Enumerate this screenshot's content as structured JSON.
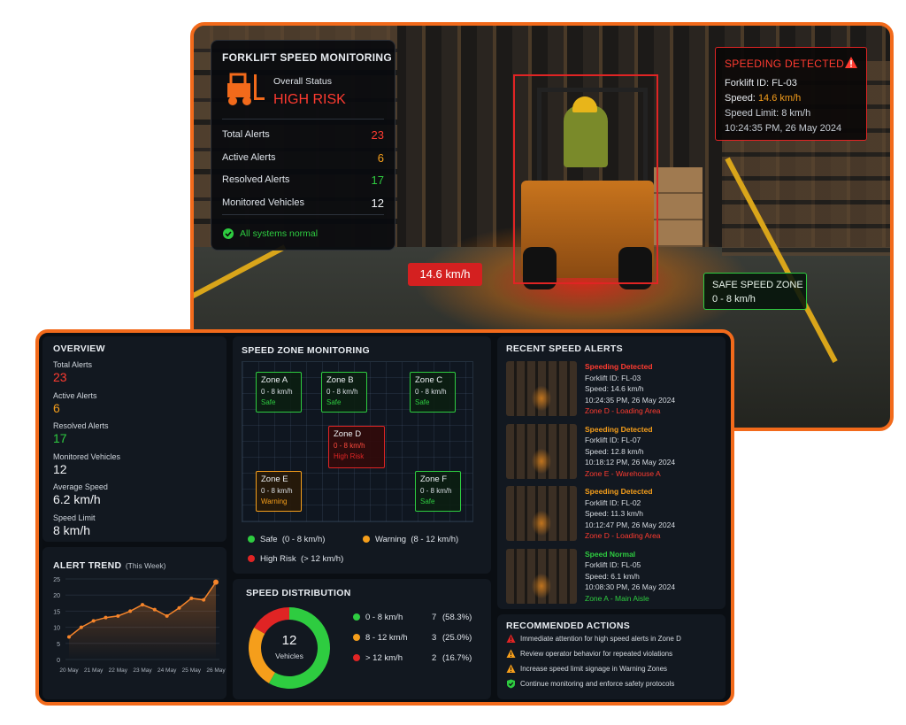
{
  "camera": {
    "status_card": {
      "title": "FORKLIFT SPEED MONITORING",
      "status_label": "Overall Status",
      "status": "HIGH RISK",
      "stats": [
        {
          "label": "Total Alerts",
          "value": 23
        },
        {
          "label": "Active Alerts",
          "value": 6
        },
        {
          "label": "Resolved Alerts",
          "value": 17
        },
        {
          "label": "Monitored Vehicles",
          "value": 12
        }
      ],
      "system": "All systems normal"
    },
    "alert": {
      "title": "SPEEDING DETECTED",
      "forklift": "Forklift ID: FL-03",
      "speed_label": "Speed:",
      "speed": "14.6 km/h",
      "limit": "Speed Limit: 8 km/h",
      "time": "10:24:35 PM, 26 May 2024"
    },
    "speed_tag": "14.6 km/h",
    "zone_tag": {
      "title": "SAFE SPEED ZONE",
      "range": "0 - 8 km/h"
    }
  },
  "overview": {
    "title": "OVERVIEW",
    "items": [
      {
        "label": "Total Alerts",
        "value": 23
      },
      {
        "label": "Active Alerts",
        "value": 6
      },
      {
        "label": "Resolved Alerts",
        "value": 17
      },
      {
        "label": "Monitored Vehicles",
        "value": 12
      },
      {
        "label": "Average Speed",
        "value": "6.2 km/h"
      },
      {
        "label": "Speed Limit",
        "value": "8 km/h"
      }
    ]
  },
  "alert_trend": {
    "type": "line",
    "title": "ALERT TREND",
    "subtitle": "(This Week)",
    "categories": [
      "20 May",
      null,
      "21 May",
      null,
      "22 May",
      null,
      "23 May",
      null,
      "24 May",
      null,
      "25 May",
      null,
      "26 May"
    ],
    "values": [
      7,
      10,
      12,
      13,
      13.5,
      15,
      17,
      15.5,
      13.5,
      16,
      19,
      18.5,
      24
    ],
    "ylim": [
      0,
      25
    ],
    "yticks": [
      0,
      5,
      10,
      15,
      20,
      25
    ],
    "color": "#f5842a"
  },
  "zone_monitoring": {
    "title": "SPEED ZONE MONITORING",
    "zones": [
      {
        "name": "Zone A",
        "range": "0 - 8 km/h",
        "status": "Safe"
      },
      {
        "name": "Zone B",
        "range": "0 - 8 km/h",
        "status": "Safe"
      },
      {
        "name": "Zone C",
        "range": "0 - 8 km/h",
        "status": "Safe"
      },
      {
        "name": "Zone D",
        "range": "0 - 8 km/h",
        "status": "High Risk"
      },
      {
        "name": "Zone E",
        "range": "0 - 8 km/h",
        "status": "Warning"
      },
      {
        "name": "Zone F",
        "range": "0 - 8 km/h",
        "status": "Safe"
      }
    ],
    "legend": [
      {
        "name": "Safe",
        "range": "(0 - 8 km/h)"
      },
      {
        "name": "Warning",
        "range": "(8 - 12 km/h)"
      },
      {
        "name": "High Risk",
        "range": "(> 12 km/h)"
      }
    ]
  },
  "speed_distribution": {
    "title": "SPEED DISTRIBUTION",
    "total": 12,
    "total_label": "Vehicles",
    "items": [
      {
        "range": "0 - 8 km/h",
        "count": 7,
        "share": "(58.3%)",
        "color": "#2ecc40"
      },
      {
        "range": "8 - 12 km/h",
        "count": 3,
        "share": "(25.0%)",
        "color": "#f59e1b"
      },
      {
        "range": "> 12 km/h",
        "count": 2,
        "share": "(16.7%)",
        "color": "#e02424"
      }
    ]
  },
  "recent_alerts": {
    "title": "RECENT SPEED ALERTS",
    "items": [
      {
        "status": "Speeding Detected",
        "forklift": "Forklift ID: FL-03",
        "speed": "Speed: 14.6 km/h",
        "time": "10:24:35 PM, 26 May 2024",
        "zone": "Zone D - Loading Area"
      },
      {
        "status": "Speeding Detected",
        "forklift": "Forklift ID: FL-07",
        "speed": "Speed: 12.8 km/h",
        "time": "10:18:12 PM, 26 May 2024",
        "zone": "Zone E - Warehouse A"
      },
      {
        "status": "Speeding Detected",
        "forklift": "Forklift ID: FL-02",
        "speed": "Speed: 11.3 km/h",
        "time": "10:12:47 PM, 26 May 2024",
        "zone": "Zone D - Loading Area"
      },
      {
        "status": "Speed Normal",
        "forklift": "Forklift ID: FL-05",
        "speed": "Speed: 6.1 km/h",
        "time": "10:08:30 PM, 26 May 2024",
        "zone": "Zone A - Main Aisle"
      }
    ]
  },
  "actions": {
    "title": "RECOMMENDED ACTIONS",
    "items": [
      "Immediate attention for high speed alerts in Zone D",
      "Review operator behavior for repeated violations",
      "Increase speed limit signage in Warning Zones",
      "Continue monitoring and enforce safety protocols"
    ]
  }
}
